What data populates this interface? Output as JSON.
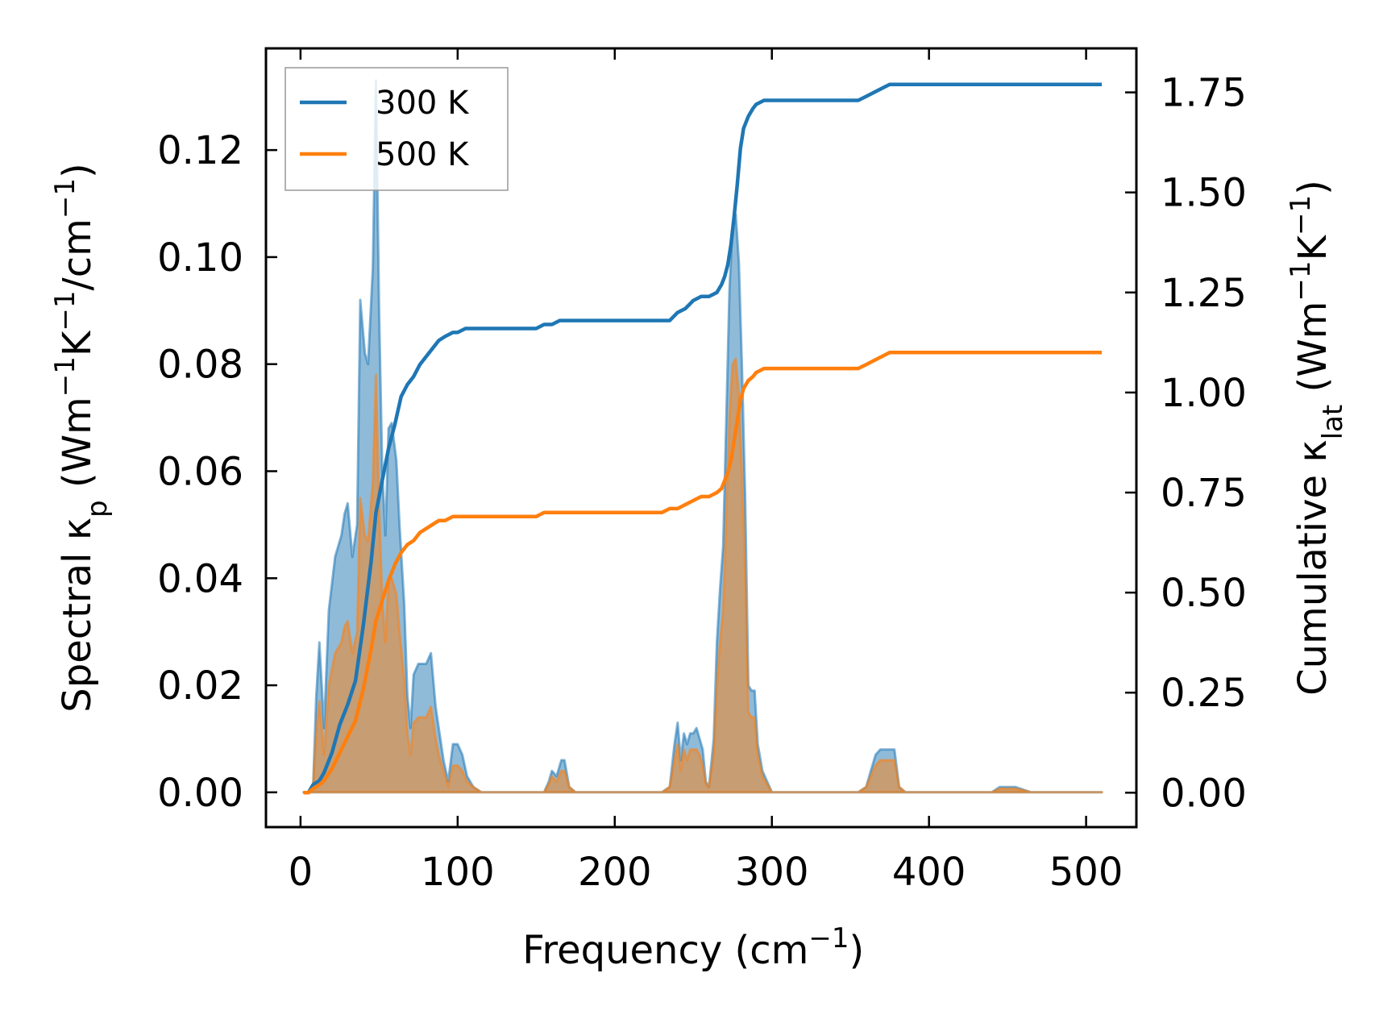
{
  "chart_data": {
    "type": "area",
    "title": "",
    "xlabel": "Frequency (cm⁻¹)",
    "xlabel_parts": {
      "base": "Frequency (cm",
      "sup": "−1",
      "tail": ")"
    },
    "ylabel_left": "Spectral κₚ (Wm⁻¹K⁻¹/cm⁻¹)",
    "ylabel_left_parts": [
      {
        "t": "Spectral κ",
        "s": ""
      },
      {
        "t": "p",
        "s": "sub"
      },
      {
        "t": " (Wm",
        "s": ""
      },
      {
        "t": "−1",
        "s": "sup"
      },
      {
        "t": "K",
        "s": ""
      },
      {
        "t": "−1",
        "s": "sup"
      },
      {
        "t": "/cm",
        "s": ""
      },
      {
        "t": "−1",
        "s": "sup"
      },
      {
        "t": ")",
        "s": ""
      }
    ],
    "ylabel_right": "Cumulative κ_lat (Wm⁻¹K⁻¹)",
    "ylabel_right_parts": [
      {
        "t": "Cumulative κ",
        "s": ""
      },
      {
        "t": "lat",
        "s": "sub"
      },
      {
        "t": " (Wm",
        "s": ""
      },
      {
        "t": "−1",
        "s": "sup"
      },
      {
        "t": "K",
        "s": ""
      },
      {
        "t": "−1",
        "s": "sup"
      },
      {
        "t": ")",
        "s": ""
      }
    ],
    "xlim": [
      -22,
      532
    ],
    "ylim_left": [
      -0.0065,
      0.139
    ],
    "ylim_right": [
      -0.086,
      1.86
    ],
    "xticks": [
      0,
      100,
      200,
      300,
      400,
      500
    ],
    "xtick_labels": [
      "0",
      "100",
      "200",
      "300",
      "400",
      "500"
    ],
    "yticks_left": [
      0.0,
      0.02,
      0.04,
      0.06,
      0.08,
      0.1,
      0.12
    ],
    "ytick_labels_left": [
      "0.00",
      "0.02",
      "0.04",
      "0.06",
      "0.08",
      "0.10",
      "0.12"
    ],
    "yticks_right": [
      0.0,
      0.25,
      0.5,
      0.75,
      1.0,
      1.25,
      1.5,
      1.75
    ],
    "ytick_labels_right": [
      "0.00",
      "0.25",
      "0.50",
      "0.75",
      "1.00",
      "1.25",
      "1.50",
      "1.75"
    ],
    "legend": {
      "placement": "top-left",
      "entries": [
        "300 K",
        "500 K"
      ]
    },
    "grid": false,
    "series": [
      {
        "name": "300 K",
        "color": "#1f77b4",
        "fill_color": "#1f77b4",
        "spectral": {
          "x": [
            2,
            5,
            8,
            10,
            12,
            15,
            18,
            22,
            26,
            28,
            30,
            33,
            36,
            38,
            41,
            43,
            46,
            48,
            50,
            52,
            54,
            56,
            58,
            61,
            63,
            66,
            68,
            70,
            72,
            75,
            78,
            80,
            83,
            86,
            88,
            91,
            94,
            97,
            100,
            103,
            106,
            110,
            115,
            120,
            130,
            140,
            150,
            155,
            158,
            160,
            163,
            166,
            168,
            171,
            175,
            200,
            230,
            235,
            238,
            240,
            242,
            244,
            246,
            248,
            250,
            252,
            254,
            256,
            258,
            260,
            263,
            265,
            267,
            269,
            271,
            273,
            275,
            277,
            279,
            281,
            283,
            285,
            287,
            289,
            291,
            294,
            297,
            300,
            303,
            306,
            310,
            320,
            340,
            355,
            360,
            363,
            366,
            369,
            372,
            375,
            378,
            381,
            385,
            400,
            440,
            445,
            450,
            455,
            460,
            465,
            500,
            510
          ],
          "y": [
            0,
            0,
            0.001,
            0.018,
            0.028,
            0.012,
            0.034,
            0.044,
            0.048,
            0.052,
            0.054,
            0.044,
            0.05,
            0.092,
            0.082,
            0.08,
            0.098,
            0.133,
            0.09,
            0.06,
            0.048,
            0.068,
            0.069,
            0.062,
            0.05,
            0.035,
            0.018,
            0.012,
            0.022,
            0.024,
            0.024,
            0.024,
            0.026,
            0.016,
            0.012,
            0.006,
            0.002,
            0.009,
            0.009,
            0.007,
            0.003,
            0.001,
            0,
            0,
            0,
            0,
            0,
            0,
            0.002,
            0.004,
            0.003,
            0.006,
            0.006,
            0.001,
            0,
            0,
            0,
            0.001,
            0.009,
            0.013,
            0.006,
            0.011,
            0.009,
            0.011,
            0.011,
            0.012,
            0.01,
            0.008,
            0.002,
            0.001,
            0.01,
            0.028,
            0.038,
            0.046,
            0.07,
            0.094,
            0.106,
            0.108,
            0.099,
            0.079,
            0.055,
            0.02,
            0.019,
            0.019,
            0.009,
            0.004,
            0.002,
            0,
            0,
            0,
            0,
            0,
            0,
            0,
            0.001,
            0.004,
            0.007,
            0.008,
            0.008,
            0.008,
            0.008,
            0.001,
            0,
            0,
            0,
            0.001,
            0.001,
            0.001,
            0.0005,
            0,
            0,
            0
          ]
        },
        "cumulative": {
          "x": [
            2,
            5,
            8,
            12,
            15,
            20,
            25,
            30,
            35,
            40,
            45,
            48,
            52,
            56,
            60,
            64,
            68,
            72,
            76,
            80,
            84,
            88,
            92,
            97,
            100,
            105,
            110,
            120,
            140,
            150,
            155,
            160,
            165,
            170,
            200,
            230,
            235,
            240,
            245,
            250,
            255,
            260,
            265,
            268,
            270,
            272,
            274,
            276,
            278,
            280,
            282,
            285,
            288,
            290,
            295,
            300,
            305,
            310,
            350,
            355,
            360,
            365,
            370,
            375,
            380,
            400,
            440,
            460,
            480,
            510
          ],
          "y": [
            0,
            0,
            0.02,
            0.03,
            0.05,
            0.1,
            0.17,
            0.22,
            0.28,
            0.42,
            0.58,
            0.7,
            0.78,
            0.86,
            0.92,
            0.99,
            1.02,
            1.04,
            1.07,
            1.09,
            1.11,
            1.13,
            1.14,
            1.15,
            1.15,
            1.16,
            1.16,
            1.16,
            1.16,
            1.16,
            1.17,
            1.17,
            1.18,
            1.18,
            1.18,
            1.18,
            1.18,
            1.2,
            1.21,
            1.23,
            1.24,
            1.24,
            1.25,
            1.27,
            1.29,
            1.32,
            1.37,
            1.44,
            1.52,
            1.61,
            1.66,
            1.69,
            1.71,
            1.72,
            1.73,
            1.73,
            1.73,
            1.73,
            1.73,
            1.73,
            1.74,
            1.75,
            1.76,
            1.77,
            1.77,
            1.77,
            1.77,
            1.77,
            1.77,
            1.77
          ]
        }
      },
      {
        "name": "500 K",
        "color": "#ff7f0e",
        "fill_color": "#ff7f0e",
        "spectral": {
          "x": [
            2,
            5,
            8,
            10,
            12,
            15,
            18,
            22,
            26,
            28,
            30,
            33,
            36,
            38,
            41,
            43,
            46,
            48,
            50,
            52,
            54,
            56,
            58,
            61,
            63,
            66,
            68,
            70,
            72,
            75,
            78,
            80,
            83,
            86,
            88,
            91,
            94,
            97,
            100,
            103,
            106,
            110,
            115,
            120,
            130,
            140,
            150,
            155,
            158,
            160,
            163,
            166,
            168,
            171,
            175,
            200,
            230,
            235,
            238,
            240,
            242,
            244,
            246,
            248,
            250,
            252,
            254,
            256,
            258,
            260,
            263,
            265,
            267,
            269,
            271,
            273,
            275,
            277,
            279,
            281,
            283,
            285,
            287,
            289,
            291,
            294,
            297,
            300,
            303,
            306,
            310,
            320,
            340,
            355,
            360,
            363,
            366,
            369,
            372,
            375,
            378,
            381,
            385,
            400,
            440,
            445,
            450,
            455,
            460,
            465,
            500,
            510
          ],
          "y": [
            0,
            0,
            0.001,
            0.011,
            0.017,
            0.007,
            0.02,
            0.026,
            0.028,
            0.031,
            0.032,
            0.026,
            0.03,
            0.055,
            0.048,
            0.047,
            0.058,
            0.078,
            0.053,
            0.036,
            0.028,
            0.04,
            0.04,
            0.037,
            0.03,
            0.021,
            0.011,
            0.007,
            0.013,
            0.014,
            0.014,
            0.014,
            0.016,
            0.01,
            0.007,
            0.004,
            0.001,
            0.005,
            0.005,
            0.004,
            0.002,
            0.001,
            0,
            0,
            0,
            0,
            0,
            0,
            0.0015,
            0.003,
            0.002,
            0.004,
            0.004,
            0.001,
            0,
            0,
            0,
            0.001,
            0.006,
            0.009,
            0.004,
            0.008,
            0.006,
            0.008,
            0.008,
            0.008,
            0.007,
            0.005,
            0.0015,
            0.001,
            0.007,
            0.02,
            0.028,
            0.034,
            0.052,
            0.07,
            0.08,
            0.081,
            0.074,
            0.059,
            0.041,
            0.015,
            0.014,
            0.014,
            0.007,
            0.003,
            0.0015,
            0,
            0,
            0,
            0,
            0,
            0,
            0,
            0.001,
            0.003,
            0.005,
            0.006,
            0.006,
            0.006,
            0.006,
            0.001,
            0,
            0,
            0,
            0.0007,
            0.0007,
            0.0007,
            0.0004,
            0,
            0,
            0
          ]
        },
        "cumulative": {
          "x": [
            2,
            5,
            8,
            12,
            15,
            20,
            25,
            30,
            35,
            40,
            45,
            48,
            52,
            56,
            60,
            64,
            68,
            72,
            76,
            80,
            84,
            88,
            92,
            97,
            100,
            105,
            110,
            120,
            140,
            150,
            155,
            160,
            165,
            170,
            200,
            230,
            235,
            240,
            245,
            250,
            255,
            260,
            265,
            268,
            270,
            272,
            274,
            276,
            278,
            280,
            282,
            285,
            288,
            290,
            295,
            300,
            305,
            310,
            350,
            355,
            360,
            365,
            370,
            375,
            380,
            400,
            440,
            460,
            480,
            510
          ],
          "y": [
            0,
            0,
            0.01,
            0.02,
            0.03,
            0.06,
            0.1,
            0.14,
            0.18,
            0.26,
            0.36,
            0.43,
            0.48,
            0.53,
            0.57,
            0.6,
            0.62,
            0.63,
            0.65,
            0.66,
            0.67,
            0.68,
            0.68,
            0.69,
            0.69,
            0.69,
            0.69,
            0.69,
            0.69,
            0.69,
            0.7,
            0.7,
            0.7,
            0.7,
            0.7,
            0.7,
            0.71,
            0.71,
            0.72,
            0.73,
            0.74,
            0.74,
            0.75,
            0.76,
            0.78,
            0.8,
            0.83,
            0.88,
            0.93,
            0.98,
            1.01,
            1.03,
            1.04,
            1.05,
            1.06,
            1.06,
            1.06,
            1.06,
            1.06,
            1.06,
            1.07,
            1.08,
            1.09,
            1.1,
            1.1,
            1.1,
            1.1,
            1.1,
            1.1,
            1.1
          ]
        }
      }
    ]
  }
}
